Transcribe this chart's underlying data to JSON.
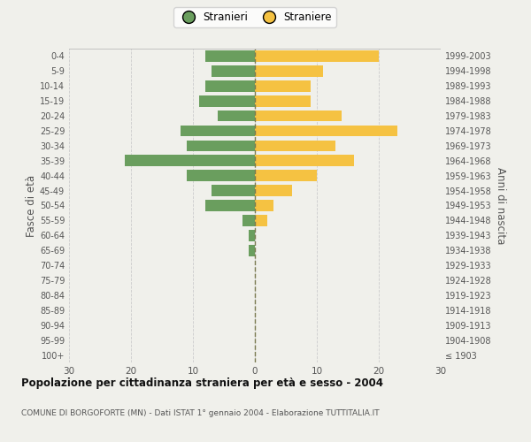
{
  "age_groups": [
    "0-4",
    "5-9",
    "10-14",
    "15-19",
    "20-24",
    "25-29",
    "30-34",
    "35-39",
    "40-44",
    "45-49",
    "50-54",
    "55-59",
    "60-64",
    "65-69",
    "70-74",
    "75-79",
    "80-84",
    "85-89",
    "90-94",
    "95-99",
    "100+"
  ],
  "birth_years": [
    "1999-2003",
    "1994-1998",
    "1989-1993",
    "1984-1988",
    "1979-1983",
    "1974-1978",
    "1969-1973",
    "1964-1968",
    "1959-1963",
    "1954-1958",
    "1949-1953",
    "1944-1948",
    "1939-1943",
    "1934-1938",
    "1929-1933",
    "1924-1928",
    "1919-1923",
    "1914-1918",
    "1909-1913",
    "1904-1908",
    "≤ 1903"
  ],
  "males": [
    8,
    7,
    8,
    9,
    6,
    12,
    11,
    21,
    11,
    7,
    8,
    2,
    1,
    1,
    0,
    0,
    0,
    0,
    0,
    0,
    0
  ],
  "females": [
    20,
    11,
    9,
    9,
    14,
    23,
    13,
    16,
    10,
    6,
    3,
    2,
    0,
    0,
    0,
    0,
    0,
    0,
    0,
    0,
    0
  ],
  "male_color": "#6a9e5e",
  "female_color": "#f5c242",
  "background_color": "#f0f0eb",
  "grid_color": "#cccccc",
  "center_line_color": "#7a7a50",
  "xlim": 30,
  "title": "Popolazione per cittadinanza straniera per età e sesso - 2004",
  "subtitle": "COMUNE DI BORGOFORTE (MN) - Dati ISTAT 1° gennaio 2004 - Elaborazione TUTTITALIA.IT",
  "ylabel_left": "Fasce di età",
  "ylabel_right": "Anni di nascita",
  "legend_stranieri": "Stranieri",
  "legend_straniere": "Straniere",
  "xticks": [
    -30,
    -20,
    -10,
    0,
    10,
    20,
    30
  ]
}
